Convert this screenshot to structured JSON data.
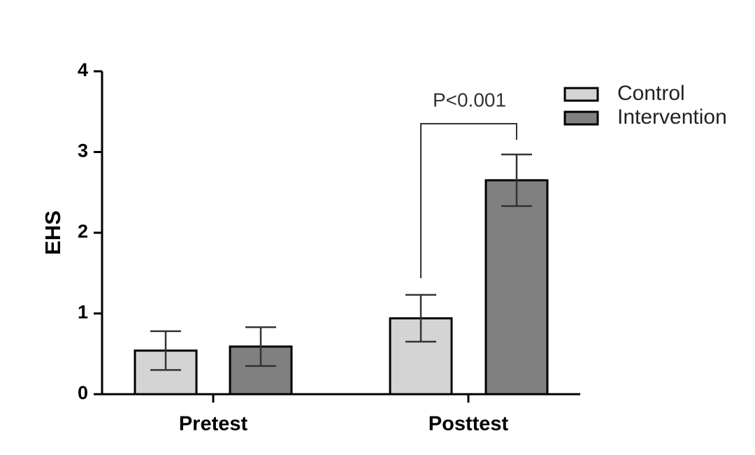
{
  "chart_data": {
    "type": "bar",
    "categories": [
      "Pretest",
      "Posttest"
    ],
    "series": [
      {
        "name": "Control",
        "values": [
          0.54,
          0.94
        ],
        "errors": [
          0.24,
          0.29
        ],
        "color": "#d4d4d4"
      },
      {
        "name": "Intervention",
        "values": [
          0.59,
          2.65
        ],
        "errors": [
          0.24,
          0.32
        ],
        "color": "#808080"
      }
    ],
    "ylabel": "EHS",
    "ylim": [
      0,
      4
    ],
    "yticks": [
      0,
      1,
      2,
      3,
      4
    ],
    "grid": false,
    "legend": "top-right",
    "annotation": {
      "text": "P<0.001",
      "category": "Posttest",
      "between": [
        "Control",
        "Intervention"
      ]
    }
  }
}
